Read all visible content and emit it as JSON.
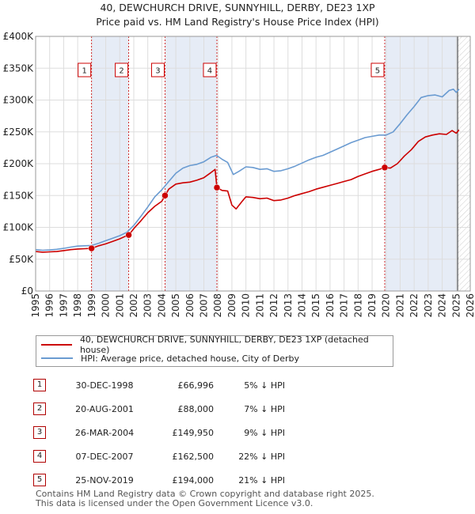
{
  "title_line1": "40, DEWCHURCH DRIVE, SUNNYHILL, DERBY, DE23 1XP",
  "title_line2": "Price paid vs. HM Land Registry's House Price Index (HPI)",
  "colors": {
    "price": "#cc0000",
    "hpi": "#6a9bd1",
    "marker_line": "#cc0000",
    "shade": "#e6ecf6",
    "grid": "#dddddd",
    "future_hatch": "#cccccc"
  },
  "chart_data": {
    "type": "line",
    "title": "40, DEWCHURCH DRIVE, SUNNYHILL, DERBY, DE23 1XP — Price paid vs. HM Land Registry's House Price Index (HPI)",
    "xlabel": "",
    "ylabel": "",
    "xlim": [
      1995,
      2026
    ],
    "ylim": [
      0,
      400000
    ],
    "y_ticks": [
      0,
      50000,
      100000,
      150000,
      200000,
      250000,
      300000,
      350000,
      400000
    ],
    "y_tick_labels": [
      "£0",
      "£50K",
      "£100K",
      "£150K",
      "£200K",
      "£250K",
      "£300K",
      "£350K",
      "£400K"
    ],
    "x_ticks": [
      1995,
      1996,
      1997,
      1998,
      1999,
      2000,
      2001,
      2002,
      2003,
      2004,
      2005,
      2006,
      2007,
      2008,
      2009,
      2010,
      2011,
      2012,
      2013,
      2014,
      2015,
      2016,
      2017,
      2018,
      2019,
      2020,
      2021,
      2022,
      2023,
      2024,
      2025,
      2026
    ],
    "x_tick_labels": [
      "1995",
      "1996",
      "1997",
      "1998",
      "1999",
      "2000",
      "2001",
      "2002",
      "2003",
      "2004",
      "2005",
      "2006",
      "2007",
      "2008",
      "2009",
      "2010",
      "2011",
      "2012",
      "2013",
      "2014",
      "2015",
      "2016",
      "2017",
      "2018",
      "2019",
      "2020",
      "2021",
      "2022",
      "2023",
      "2024",
      "2025",
      "2026"
    ],
    "grid": true,
    "legend_position": "below",
    "future_from": 2025.1,
    "shaded_ranges": [
      [
        1998.99,
        2001.64
      ],
      [
        2004.23,
        2007.93
      ],
      [
        2019.9,
        2025.1
      ]
    ],
    "series": [
      {
        "name": "40, DEWCHURCH DRIVE, SUNNYHILL, DERBY, DE23 1XP (detached house)",
        "color": "#cc0000",
        "x": [
          1995.0,
          1995.5,
          1996.0,
          1996.5,
          1997.0,
          1997.5,
          1998.0,
          1998.5,
          1998.99,
          1999.5,
          2000.0,
          2000.5,
          2001.0,
          2001.4,
          2001.64,
          2002.0,
          2002.5,
          2003.0,
          2003.5,
          2004.0,
          2004.23,
          2004.5,
          2005.0,
          2005.5,
          2006.0,
          2006.5,
          2007.0,
          2007.5,
          2007.8,
          2007.93,
          2008.3,
          2008.7,
          2009.0,
          2009.3,
          2009.7,
          2010.0,
          2010.5,
          2011.0,
          2011.5,
          2012.0,
          2012.5,
          2013.0,
          2013.5,
          2014.0,
          2014.5,
          2015.0,
          2015.5,
          2016.0,
          2016.5,
          2017.0,
          2017.5,
          2018.0,
          2018.5,
          2019.0,
          2019.5,
          2019.9,
          2020.3,
          2020.8,
          2021.3,
          2021.8,
          2022.3,
          2022.8,
          2023.3,
          2023.8,
          2024.3,
          2024.7,
          2025.0,
          2025.2
        ],
        "y": [
          62000,
          61000,
          61500,
          62000,
          63500,
          65000,
          66000,
          66500,
          66996,
          71000,
          74000,
          78000,
          82000,
          86000,
          88000,
          98000,
          110000,
          123000,
          133000,
          141000,
          149950,
          160000,
          168000,
          170000,
          171000,
          174000,
          178000,
          186000,
          191000,
          162500,
          158000,
          157000,
          135000,
          129000,
          140000,
          148000,
          147000,
          145000,
          146000,
          142000,
          143000,
          146000,
          150000,
          153000,
          156000,
          160000,
          163000,
          166000,
          169000,
          172000,
          175000,
          180000,
          184000,
          188000,
          191000,
          194000,
          193000,
          200000,
          212000,
          222000,
          235000,
          242000,
          245000,
          247000,
          246000,
          252000,
          248000,
          253000
        ]
      },
      {
        "name": "HPI: Average price, detached house, City of Derby",
        "color": "#6a9bd1",
        "x": [
          1995.0,
          1995.5,
          1996.0,
          1996.5,
          1997.0,
          1997.5,
          1998.0,
          1998.5,
          1999.0,
          1999.5,
          2000.0,
          2000.5,
          2001.0,
          2001.5,
          2002.0,
          2002.5,
          2003.0,
          2003.5,
          2004.0,
          2004.5,
          2005.0,
          2005.5,
          2006.0,
          2006.5,
          2007.0,
          2007.5,
          2007.9,
          2008.3,
          2008.7,
          2009.1,
          2009.5,
          2010.0,
          2010.5,
          2011.0,
          2011.5,
          2012.0,
          2012.5,
          2013.0,
          2013.5,
          2014.0,
          2014.5,
          2015.0,
          2015.5,
          2016.0,
          2016.5,
          2017.0,
          2017.5,
          2018.0,
          2018.5,
          2019.0,
          2019.5,
          2020.0,
          2020.5,
          2021.0,
          2021.5,
          2022.0,
          2022.5,
          2023.0,
          2023.5,
          2024.0,
          2024.5,
          2024.8,
          2025.0,
          2025.2
        ],
        "y": [
          65000,
          64000,
          64500,
          65500,
          67000,
          69000,
          70500,
          71000,
          71500,
          75000,
          79000,
          83000,
          87000,
          92000,
          103000,
          117000,
          132000,
          148000,
          159000,
          172000,
          185000,
          193000,
          197000,
          199000,
          203000,
          210000,
          213000,
          207000,
          202000,
          183000,
          188000,
          195000,
          194000,
          191000,
          192000,
          188000,
          189000,
          192000,
          196000,
          201000,
          206000,
          210000,
          213000,
          218000,
          223000,
          228000,
          233000,
          237000,
          241000,
          243000,
          245000,
          245000,
          250000,
          263000,
          277000,
          290000,
          304000,
          307000,
          308000,
          305000,
          315000,
          317000,
          312000,
          317000
        ]
      }
    ],
    "annotations": [
      {
        "label": "1",
        "x": 1998.99,
        "y": 66996
      },
      {
        "label": "2",
        "x": 2001.64,
        "y": 88000
      },
      {
        "label": "3",
        "x": 2004.23,
        "y": 149950
      },
      {
        "label": "4",
        "x": 2007.93,
        "y": 162500
      },
      {
        "label": "5",
        "x": 2019.9,
        "y": 194000
      }
    ]
  },
  "legend": [
    {
      "label": "40, DEWCHURCH DRIVE, SUNNYHILL, DERBY, DE23 1XP (detached house)",
      "color": "#cc0000"
    },
    {
      "label": "HPI: Average price, detached house, City of Derby",
      "color": "#6a9bd1"
    }
  ],
  "sales": [
    {
      "num": "1",
      "date": "30-DEC-1998",
      "price": "£66,996",
      "rel": "5% ↓ HPI"
    },
    {
      "num": "2",
      "date": "20-AUG-2001",
      "price": "£88,000",
      "rel": "7% ↓ HPI"
    },
    {
      "num": "3",
      "date": "26-MAR-2004",
      "price": "£149,950",
      "rel": "9% ↓ HPI"
    },
    {
      "num": "4",
      "date": "07-DEC-2007",
      "price": "£162,500",
      "rel": "22% ↓ HPI"
    },
    {
      "num": "5",
      "date": "25-NOV-2019",
      "price": "£194,000",
      "rel": "21% ↓ HPI"
    }
  ],
  "footer_line1": "Contains HM Land Registry data © Crown copyright and database right 2025.",
  "footer_line2": "This data is licensed under the Open Government Licence v3.0."
}
